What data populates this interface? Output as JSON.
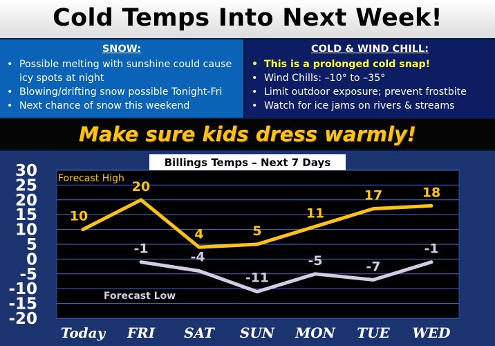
{
  "title": "Cold Temps Into Next Week!",
  "snow_panel": {
    "header": "SNOW:",
    "items": [
      {
        "text": "Possible melting with sunshine could cause icy spots at night"
      },
      {
        "text": "Blowing/drifting snow possible Tonight-Fri"
      },
      {
        "text": "Next chance of snow this weekend"
      }
    ]
  },
  "cold_panel": {
    "header": "COLD & WIND CHILL:",
    "items": [
      {
        "text": "This is a prolonged cold snap!",
        "highlight": true
      },
      {
        "text": "Wind Chills: –10° to –35°"
      },
      {
        "text": "Limit outdoor exposure; prevent frostbite"
      },
      {
        "text": "Watch for ice jams on rivers & streams"
      }
    ]
  },
  "banner": "Make sure kids dress warmly!",
  "colors": {
    "high_line": "#ffc21a",
    "low_line": "#d4cce6",
    "plot_bg": "#000000",
    "grid": "#4a6fd0"
  },
  "chart_data": {
    "type": "line",
    "title": "Billings Temps – Next 7 Days",
    "categories": [
      "Today",
      "FRI",
      "SAT",
      "SUN",
      "MON",
      "TUE",
      "WED"
    ],
    "ylim": [
      -20,
      30
    ],
    "yticks": [
      30,
      25,
      20,
      15,
      10,
      5,
      0,
      -5,
      -10,
      -15,
      -20
    ],
    "ytick_labels": [
      "30",
      "25",
      "20",
      "15",
      "10",
      "5",
      "0",
      "-5",
      "-10",
      "-15",
      "-20"
    ],
    "grid": true,
    "series": [
      {
        "name": "Forecast High",
        "values": [
          10,
          20,
          4,
          5,
          11,
          17,
          18
        ],
        "labels": [
          "10",
          "20",
          "4",
          "5",
          "11",
          "17",
          "18"
        ]
      },
      {
        "name": "Forecast Low",
        "values": [
          null,
          -1,
          -4,
          -11,
          -5,
          -7,
          -1
        ],
        "labels": [
          "",
          "-1",
          "-4",
          "-11",
          "-5",
          "-7",
          "-1"
        ]
      }
    ]
  }
}
